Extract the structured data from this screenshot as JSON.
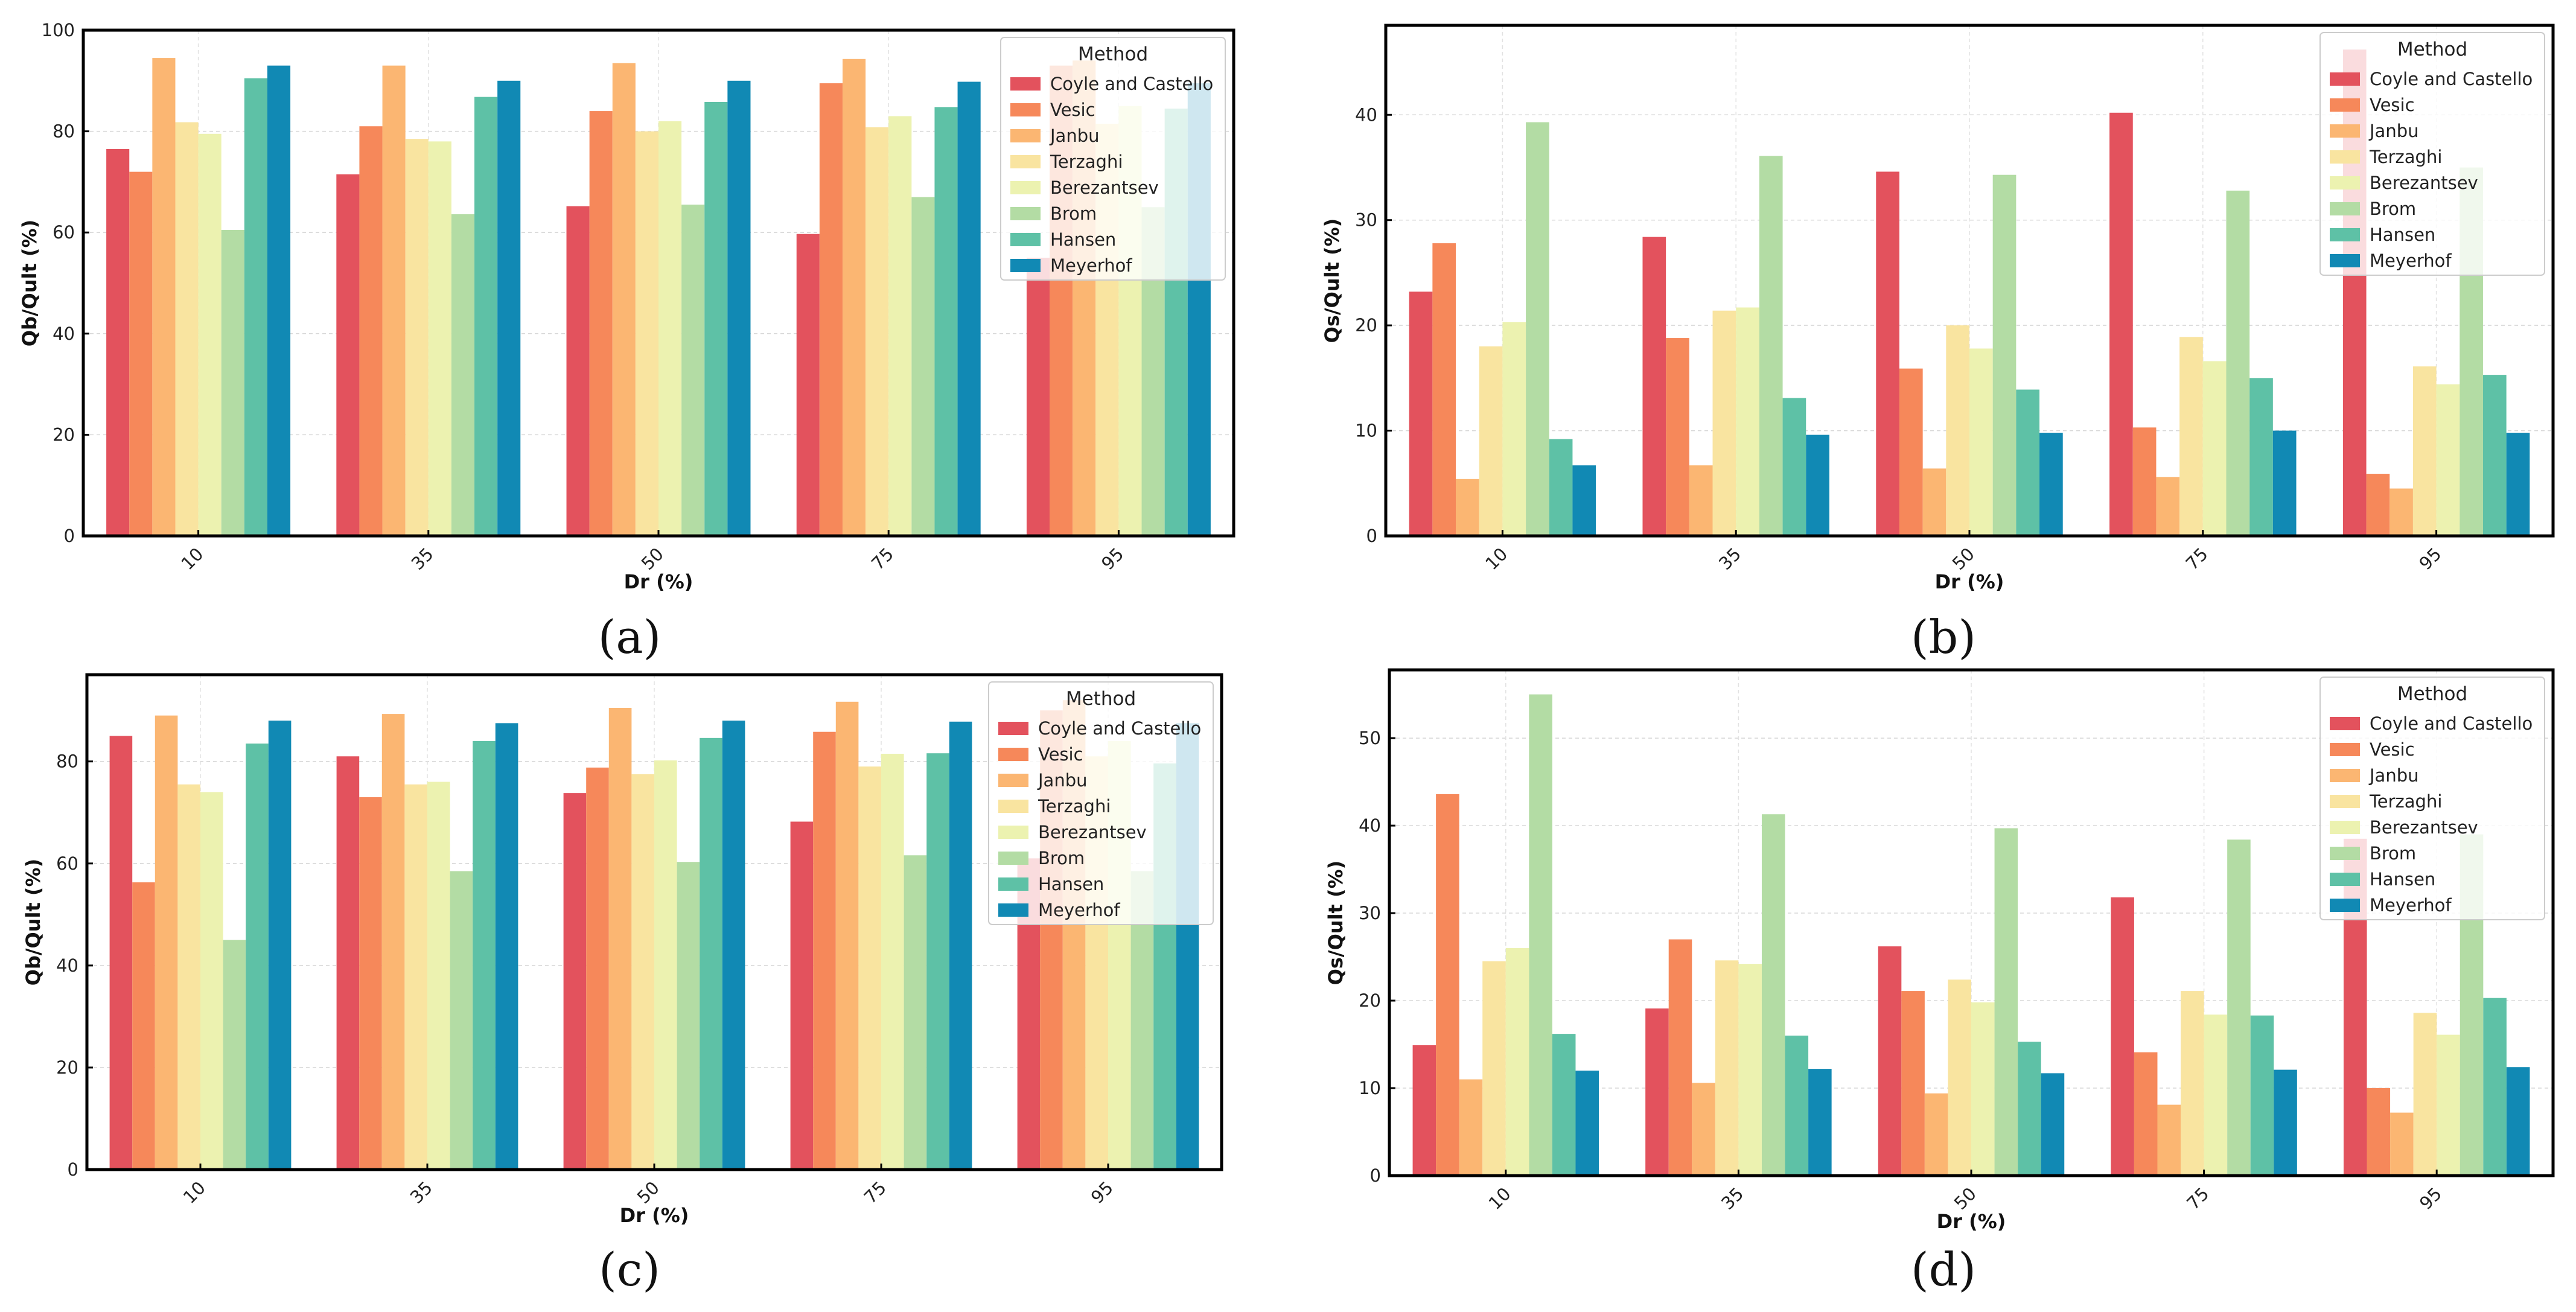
{
  "chart_data": [
    {
      "type": "bar",
      "panel_label": "(a)",
      "xlabel": "Dr (%)",
      "ylabel": "Qb/Qult (%)",
      "ylim": [
        0,
        100
      ],
      "yticks": [
        0,
        20,
        40,
        60,
        80,
        100
      ],
      "grid": true,
      "legend_title": "Method",
      "legend_position": "top-right",
      "categories": [
        "10",
        "35",
        "50",
        "75",
        "95"
      ],
      "series": [
        {
          "name": "Coyle and Castello",
          "color": "#e3525d",
          "values": [
            76.5,
            71.5,
            65.2,
            59.7,
            55.0
          ]
        },
        {
          "name": "Vesic",
          "color": "#f6885a",
          "values": [
            72.0,
            81.0,
            84.0,
            89.5,
            93.0
          ]
        },
        {
          "name": "Janbu",
          "color": "#fbb672",
          "values": [
            94.5,
            93.0,
            93.5,
            94.3,
            94.0
          ]
        },
        {
          "name": "Terzaghi",
          "color": "#f9e4a0",
          "values": [
            81.8,
            78.5,
            80.0,
            80.8,
            81.5
          ]
        },
        {
          "name": "Berezantsev",
          "color": "#ecf2b0",
          "values": [
            79.5,
            78.0,
            82.0,
            83.0,
            85.0
          ]
        },
        {
          "name": "Brom",
          "color": "#b3dca4",
          "values": [
            60.5,
            63.6,
            65.5,
            67.0,
            65.0
          ]
        },
        {
          "name": "Hansen",
          "color": "#5ec1a6",
          "values": [
            90.5,
            86.8,
            85.8,
            84.8,
            84.5
          ]
        },
        {
          "name": "Meyerhof",
          "color": "#1189b4",
          "values": [
            93.0,
            90.0,
            90.0,
            89.8,
            89.5
          ]
        }
      ]
    },
    {
      "type": "bar",
      "panel_label": "(b)",
      "xlabel": "Dr (%)",
      "ylabel": "Qs/Qult (%)",
      "ylim": [
        0,
        48.5
      ],
      "yticks": [
        0,
        10,
        20,
        30,
        40
      ],
      "grid": true,
      "legend_title": "Method",
      "legend_position": "top-right",
      "categories": [
        "10",
        "35",
        "50",
        "75",
        "95"
      ],
      "series": [
        {
          "name": "Coyle and Castello",
          "color": "#e3525d",
          "values": [
            23.2,
            28.4,
            34.6,
            40.2,
            46.2
          ]
        },
        {
          "name": "Vesic",
          "color": "#f6885a",
          "values": [
            27.8,
            18.8,
            15.9,
            10.3,
            5.9
          ]
        },
        {
          "name": "Janbu",
          "color": "#fbb672",
          "values": [
            5.4,
            6.7,
            6.4,
            5.6,
            4.5
          ]
        },
        {
          "name": "Terzaghi",
          "color": "#f9e4a0",
          "values": [
            18.0,
            21.4,
            20.0,
            18.9,
            16.1
          ]
        },
        {
          "name": "Berezantsev",
          "color": "#ecf2b0",
          "values": [
            20.3,
            21.7,
            17.8,
            16.6,
            14.4
          ]
        },
        {
          "name": "Brom",
          "color": "#b3dca4",
          "values": [
            39.3,
            36.1,
            34.3,
            32.8,
            35.0
          ]
        },
        {
          "name": "Hansen",
          "color": "#5ec1a6",
          "values": [
            9.2,
            13.1,
            13.9,
            15.0,
            15.3
          ]
        },
        {
          "name": "Meyerhof",
          "color": "#1189b4",
          "values": [
            6.7,
            9.6,
            9.8,
            10.0,
            9.8
          ]
        }
      ]
    },
    {
      "type": "bar",
      "panel_label": "(c)",
      "xlabel": "Dr (%)",
      "ylabel": "Qb/Qult (%)",
      "ylim": [
        0,
        97
      ],
      "yticks": [
        0,
        20,
        40,
        60,
        80
      ],
      "grid": true,
      "legend_title": "Method",
      "legend_position": "top-right",
      "categories": [
        "10",
        "35",
        "50",
        "75",
        "95"
      ],
      "series": [
        {
          "name": "Coyle and Castello",
          "color": "#e3525d",
          "values": [
            85.0,
            81.0,
            73.8,
            68.2,
            61.0
          ]
        },
        {
          "name": "Vesic",
          "color": "#f6885a",
          "values": [
            56.3,
            73.0,
            78.8,
            85.8,
            90.0
          ]
        },
        {
          "name": "Janbu",
          "color": "#fbb672",
          "values": [
            89.0,
            89.3,
            90.5,
            91.7,
            92.0
          ]
        },
        {
          "name": "Terzaghi",
          "color": "#f9e4a0",
          "values": [
            75.5,
            75.5,
            77.5,
            79.0,
            81.0
          ]
        },
        {
          "name": "Berezantsev",
          "color": "#ecf2b0",
          "values": [
            74.0,
            76.0,
            80.2,
            81.5,
            84.0
          ]
        },
        {
          "name": "Brom",
          "color": "#b3dca4",
          "values": [
            45.0,
            58.5,
            60.3,
            61.6,
            58.5
          ]
        },
        {
          "name": "Hansen",
          "color": "#5ec1a6",
          "values": [
            83.5,
            84.0,
            84.6,
            81.6,
            79.6
          ]
        },
        {
          "name": "Meyerhof",
          "color": "#1189b4",
          "values": [
            88.0,
            87.5,
            88.0,
            87.8,
            87.5
          ]
        }
      ]
    },
    {
      "type": "bar",
      "panel_label": "(d)",
      "xlabel": "Dr (%)",
      "ylabel": "Qs/Qult (%)",
      "ylim": [
        0,
        57.8
      ],
      "yticks": [
        0,
        10,
        20,
        30,
        40,
        50
      ],
      "grid": true,
      "legend_title": "Method",
      "legend_position": "top-right",
      "categories": [
        "10",
        "35",
        "50",
        "75",
        "95"
      ],
      "series": [
        {
          "name": "Coyle and Castello",
          "color": "#e3525d",
          "values": [
            14.9,
            19.1,
            26.2,
            31.8,
            38.5
          ]
        },
        {
          "name": "Vesic",
          "color": "#f6885a",
          "values": [
            43.6,
            27.0,
            21.1,
            14.1,
            10.0
          ]
        },
        {
          "name": "Janbu",
          "color": "#fbb672",
          "values": [
            11.0,
            10.6,
            9.4,
            8.1,
            7.2
          ]
        },
        {
          "name": "Terzaghi",
          "color": "#f9e4a0",
          "values": [
            24.5,
            24.6,
            22.4,
            21.1,
            18.6
          ]
        },
        {
          "name": "Berezantsev",
          "color": "#ecf2b0",
          "values": [
            26.0,
            24.2,
            19.8,
            18.4,
            16.1
          ]
        },
        {
          "name": "Brom",
          "color": "#b3dca4",
          "values": [
            55.0,
            41.3,
            39.7,
            38.4,
            39.0
          ]
        },
        {
          "name": "Hansen",
          "color": "#5ec1a6",
          "values": [
            16.2,
            16.0,
            15.3,
            18.3,
            20.3
          ]
        },
        {
          "name": "Meyerhof",
          "color": "#1189b4",
          "values": [
            12.0,
            12.2,
            11.7,
            12.1,
            12.4
          ]
        }
      ]
    }
  ]
}
